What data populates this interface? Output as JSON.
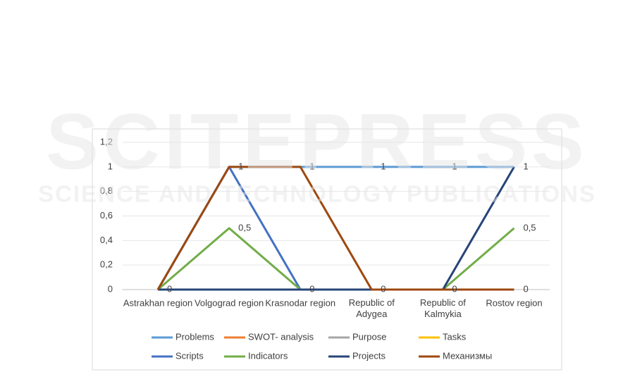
{
  "chart_data": {
    "type": "line",
    "categories": [
      "Astrakhan region",
      "Volgograd region",
      "Krasnodar region",
      "Republic of Adygea",
      "Republic of Kalmykia",
      "Rostov region"
    ],
    "series": [
      {
        "name": "Problems",
        "color": "#5b9bd5",
        "values": [
          0,
          1,
          1,
          1,
          1,
          1
        ],
        "value_labels": [
          "0",
          "1",
          "1",
          "1",
          "1",
          "1"
        ]
      },
      {
        "name": "SWOT- analysis",
        "color": "#ed7d31",
        "values": [
          0,
          0,
          0,
          0,
          0,
          0
        ]
      },
      {
        "name": "Purpose",
        "color": "#a5a5a5",
        "values": [
          0,
          0,
          0,
          0,
          0,
          0
        ]
      },
      {
        "name": "Tasks",
        "color": "#ffc000",
        "values": [
          0,
          0,
          0,
          0,
          0,
          0
        ]
      },
      {
        "name": "Scripts",
        "color": "#4472c4",
        "values": [
          0,
          1,
          0,
          0,
          0,
          0
        ],
        "value_labels": [
          null,
          null,
          "0",
          null,
          null,
          null
        ]
      },
      {
        "name": "Indicators",
        "color": "#70ad47",
        "values": [
          0,
          0.5,
          0,
          0,
          0,
          0.5
        ],
        "value_labels": [
          null,
          "0,5",
          null,
          null,
          null,
          "0,5"
        ]
      },
      {
        "name": "Projects",
        "color": "#264478",
        "values": [
          0,
          0,
          0,
          0,
          0,
          1
        ]
      },
      {
        "name": "Механизмы",
        "color": "#9e480e",
        "values": [
          0,
          1,
          1,
          0,
          0,
          0
        ],
        "value_labels": [
          null,
          null,
          null,
          "0",
          "0",
          "0"
        ]
      }
    ],
    "ylim": [
      0,
      1.2
    ],
    "yticks": [
      0,
      {
        "value": 0.2,
        "label": "0,2"
      },
      {
        "value": 0.4,
        "label": "0,4"
      },
      {
        "value": 0.6,
        "label": "0,6"
      },
      {
        "value": 0.8,
        "label": "0,8"
      },
      1,
      {
        "value": 1.2,
        "label": "1,2"
      }
    ],
    "grid": true,
    "legend": "bottom"
  },
  "watermark": {
    "title": "SCITEPRESS",
    "subtitle": "SCIENCE AND TECHNOLOGY PUBLICATIONS"
  }
}
